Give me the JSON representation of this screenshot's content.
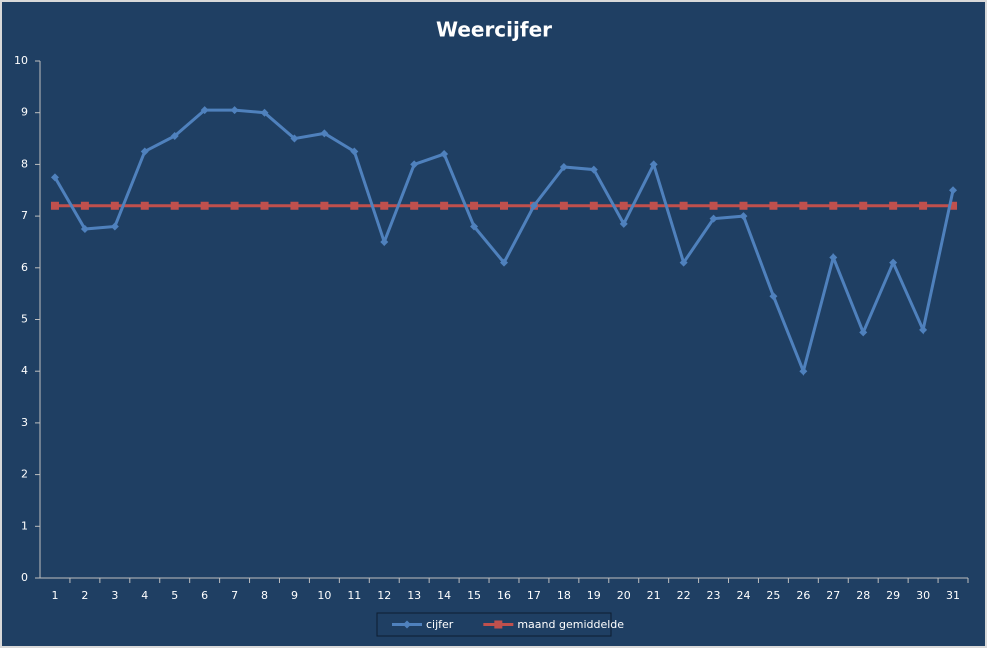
{
  "chart_data": {
    "type": "line",
    "title": "Weercijfer",
    "categories": [
      "1",
      "2",
      "3",
      "4",
      "5",
      "6",
      "7",
      "8",
      "9",
      "10",
      "11",
      "12",
      "13",
      "14",
      "15",
      "16",
      "17",
      "18",
      "19",
      "20",
      "21",
      "22",
      "23",
      "24",
      "25",
      "26",
      "27",
      "28",
      "29",
      "30",
      "31"
    ],
    "series": [
      {
        "name": "cijfer",
        "color": "#4f81bd",
        "marker": "diamond",
        "values": [
          7.75,
          6.75,
          6.8,
          8.25,
          8.55,
          9.05,
          9.05,
          9.0,
          8.5,
          8.6,
          8.25,
          6.5,
          8.0,
          8.2,
          6.8,
          6.1,
          7.2,
          7.95,
          7.9,
          6.85,
          8.0,
          6.1,
          6.95,
          7.0,
          5.45,
          4.0,
          6.2,
          4.75,
          6.1,
          4.8,
          7.5
        ]
      },
      {
        "name": "maand gemiddelde",
        "color": "#c0504d",
        "marker": "square",
        "values": [
          7.2,
          7.2,
          7.2,
          7.2,
          7.2,
          7.2,
          7.2,
          7.2,
          7.2,
          7.2,
          7.2,
          7.2,
          7.2,
          7.2,
          7.2,
          7.2,
          7.2,
          7.2,
          7.2,
          7.2,
          7.2,
          7.2,
          7.2,
          7.2,
          7.2,
          7.2,
          7.2,
          7.2,
          7.2,
          7.2,
          7.2
        ]
      }
    ],
    "ylim": [
      0,
      10
    ],
    "yticks": [
      0,
      1,
      2,
      3,
      4,
      5,
      6,
      7,
      8,
      9,
      10
    ],
    "grid": false,
    "legend": "bottom"
  }
}
